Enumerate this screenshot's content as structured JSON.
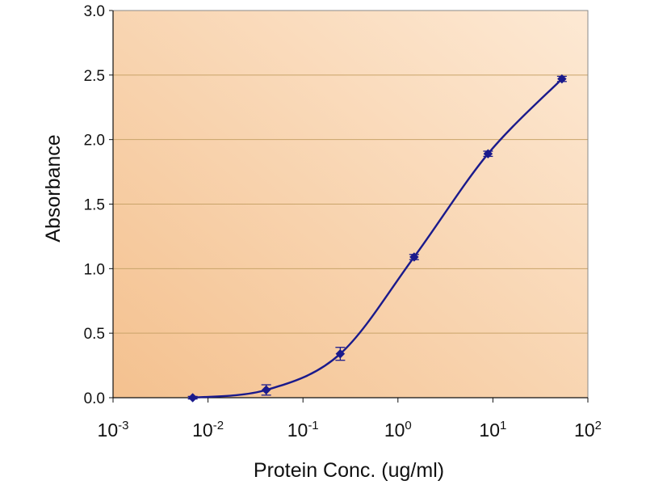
{
  "chart_data": {
    "type": "line",
    "title": "",
    "xlabel": "Protein Conc. (ug/ml)",
    "ylabel": "Absorbance",
    "xscale": "log",
    "xlim": [
      0.001,
      100
    ],
    "ylim": [
      0,
      3.0
    ],
    "grid": "horizontal",
    "x_ticks": [
      {
        "value": 0.001,
        "base": "10",
        "exp": "-3"
      },
      {
        "value": 0.01,
        "base": "10",
        "exp": "-2"
      },
      {
        "value": 0.1,
        "base": "10",
        "exp": "-1"
      },
      {
        "value": 1,
        "base": "10",
        "exp": "0"
      },
      {
        "value": 10,
        "base": "10",
        "exp": "1"
      },
      {
        "value": 100,
        "base": "10",
        "exp": "2"
      }
    ],
    "y_ticks": [
      {
        "value": 0.0,
        "label": "0.0"
      },
      {
        "value": 0.5,
        "label": "0.5"
      },
      {
        "value": 1.0,
        "label": "1.0"
      },
      {
        "value": 1.5,
        "label": "1.5"
      },
      {
        "value": 2.0,
        "label": "2.0"
      },
      {
        "value": 2.5,
        "label": "2.5"
      },
      {
        "value": 3.0,
        "label": "3.0"
      }
    ],
    "series": [
      {
        "name": "Absorbance",
        "color": "#1a1a8c",
        "marker": "diamond",
        "points": [
          {
            "x": 0.0069,
            "y": 0.0,
            "err": 0.01
          },
          {
            "x": 0.041,
            "y": 0.06,
            "err": 0.04
          },
          {
            "x": 0.247,
            "y": 0.34,
            "err": 0.05
          },
          {
            "x": 1.48,
            "y": 1.09,
            "err": 0.02
          },
          {
            "x": 8.89,
            "y": 1.89,
            "err": 0.02
          },
          {
            "x": 53.3,
            "y": 2.47,
            "err": 0.02
          }
        ]
      }
    ],
    "colors": {
      "plot_bg_dark": "#f4c18f",
      "plot_bg_light": "#fde9d4",
      "gridline": "#c9a46a",
      "axis": "#111111"
    }
  }
}
